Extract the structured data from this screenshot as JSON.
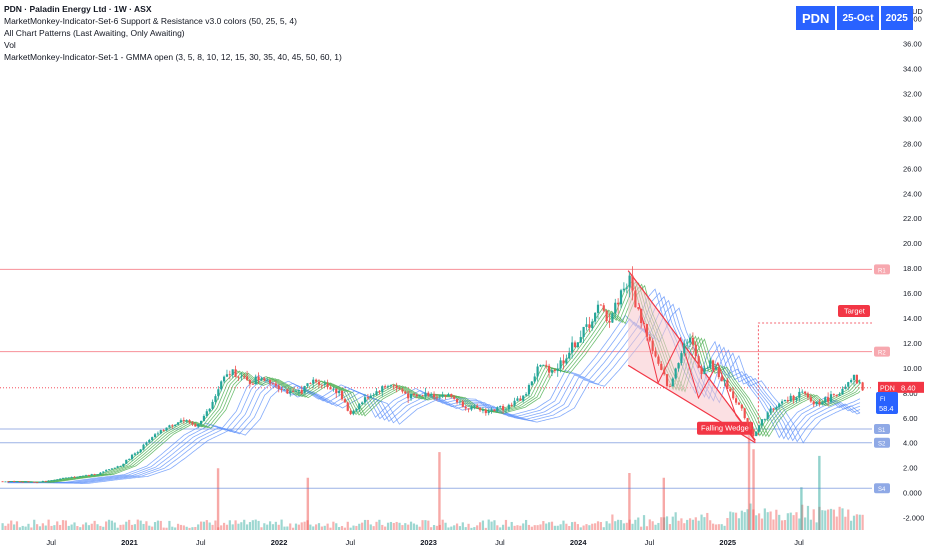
{
  "header": {
    "title": "PDN · Paladin Energy Ltd · 1W · ASX",
    "lines": [
      "MarketMonkey-Indicator-Set-6 Support & Resistance v3.0 colors (50, 25, 5, 4)",
      "All Chart Patterns (Last Awaiting, Only Awaiting)",
      "Vol",
      "MarketMonkey-Indicator-Set-1 - GMMA open (3, 5, 8, 10, 12, 15, 30, 35, 40, 45, 50, 60, 1)"
    ]
  },
  "badge": {
    "symbol": "PDN",
    "date": "25-Oct",
    "year": "2025"
  },
  "colors": {
    "up": "#26a69a",
    "down": "#ef5350",
    "fast_ribbon": "#4caf50",
    "slow_ribbon": "#5b8ff9",
    "resistance": "#f23645",
    "support": "#5b7fd6",
    "wedge_fill": "#f7c7cc",
    "badge": "#2962ff"
  },
  "chart_data": {
    "type": "candlestick",
    "currency": "AUD",
    "timeframe": "1W",
    "y_ticks": [
      -2,
      0,
      2,
      4,
      6,
      8,
      10,
      12,
      14,
      16,
      18,
      20,
      22,
      24,
      26,
      28,
      30,
      32,
      34,
      36,
      38
    ],
    "y_tick_labels": [
      "-2.000",
      "0.000",
      "2.00",
      "4.00",
      "6.00",
      "8.00",
      "10.00",
      "12.00",
      "14.00",
      "16.00",
      "18.00",
      "20.00",
      "22.00",
      "24.00",
      "26.00",
      "28.00",
      "30.00",
      "32.00",
      "34.00",
      "36.00",
      "38.00"
    ],
    "x_labels": [
      "Jul",
      "2021",
      "Jul",
      "2022",
      "Jul",
      "2023",
      "Jul",
      "2024",
      "Jul",
      "2025",
      "Jul"
    ],
    "x_label_positions": [
      2020.5,
      2021.0,
      2021.5,
      2022.0,
      2022.5,
      2023.0,
      2023.5,
      2024.0,
      2024.5,
      2025.0,
      2025.5
    ],
    "x_range": [
      2020.15,
      2025.98
    ],
    "y_range": [
      -3,
      39.5
    ],
    "price_path": [
      [
        2020.15,
        0.9
      ],
      [
        2020.4,
        0.85
      ],
      [
        2020.6,
        1.2
      ],
      [
        2020.8,
        1.5
      ],
      [
        2020.95,
        2.2
      ],
      [
        2021.05,
        3.2
      ],
      [
        2021.2,
        4.8
      ],
      [
        2021.35,
        5.8
      ],
      [
        2021.45,
        5.3
      ],
      [
        2021.55,
        6.8
      ],
      [
        2021.62,
        8.8
      ],
      [
        2021.7,
        9.8
      ],
      [
        2021.8,
        8.8
      ],
      [
        2021.9,
        9.3
      ],
      [
        2022.0,
        8.6
      ],
      [
        2022.1,
        7.8
      ],
      [
        2022.25,
        9.0
      ],
      [
        2022.4,
        8.2
      ],
      [
        2022.48,
        6.3
      ],
      [
        2022.6,
        7.7
      ],
      [
        2022.75,
        8.7
      ],
      [
        2022.9,
        7.6
      ],
      [
        2023.0,
        7.9
      ],
      [
        2023.15,
        7.8
      ],
      [
        2023.25,
        6.9
      ],
      [
        2023.4,
        6.5
      ],
      [
        2023.55,
        7.0
      ],
      [
        2023.65,
        7.8
      ],
      [
        2023.75,
        10.2
      ],
      [
        2023.85,
        9.8
      ],
      [
        2023.95,
        11.3
      ],
      [
        2024.05,
        13.0
      ],
      [
        2024.15,
        14.8
      ],
      [
        2024.22,
        13.9
      ],
      [
        2024.3,
        16.3
      ],
      [
        2024.35,
        17.0
      ],
      [
        2024.4,
        14.8
      ],
      [
        2024.47,
        12.7
      ],
      [
        2024.55,
        10.0
      ],
      [
        2024.62,
        8.3
      ],
      [
        2024.7,
        11.6
      ],
      [
        2024.75,
        12.6
      ],
      [
        2024.82,
        9.8
      ],
      [
        2024.9,
        10.3
      ],
      [
        2024.97,
        9.0
      ],
      [
        2025.05,
        7.7
      ],
      [
        2025.12,
        6.2
      ],
      [
        2025.18,
        4.6
      ],
      [
        2025.24,
        5.8
      ],
      [
        2025.3,
        6.7
      ],
      [
        2025.4,
        7.4
      ],
      [
        2025.5,
        8.0
      ],
      [
        2025.58,
        7.1
      ],
      [
        2025.68,
        7.6
      ],
      [
        2025.78,
        8.2
      ],
      [
        2025.85,
        9.1
      ],
      [
        2025.9,
        8.4
      ]
    ],
    "last_price": 8.4,
    "last_price_label": "8.40",
    "symbol_tag": "PDN",
    "fi_tag": "FI",
    "fi_value": "58.4",
    "resistance_levels": [
      {
        "price": 17.9,
        "label": "R1"
      },
      {
        "price": 11.3,
        "label": "R2"
      }
    ],
    "support_levels": [
      {
        "price": 5.1,
        "label": "S1"
      },
      {
        "price": 4.0,
        "label": "S2"
      },
      {
        "price": 0.35,
        "label": "S4"
      }
    ],
    "pattern": {
      "name": "Falling Wedge",
      "upper": [
        [
          2024.35,
          17.8
        ],
        [
          2025.2,
          4.2
        ]
      ],
      "lower": [
        [
          2024.35,
          10.2
        ],
        [
          2025.2,
          4.0
        ]
      ],
      "target_label": "Target",
      "target_price": 13.6
    },
    "volume_spikes": [
      {
        "x": 2021.6,
        "v": 0.65
      },
      {
        "x": 2022.2,
        "v": 0.55
      },
      {
        "x": 2023.08,
        "v": 0.82
      },
      {
        "x": 2024.35,
        "v": 0.6
      },
      {
        "x": 2024.58,
        "v": 0.55
      },
      {
        "x": 2025.15,
        "v": 1.0
      },
      {
        "x": 2025.18,
        "v": 0.85
      },
      {
        "x": 2025.5,
        "v": 0.45
      },
      {
        "x": 2025.62,
        "v": 0.78
      }
    ]
  }
}
